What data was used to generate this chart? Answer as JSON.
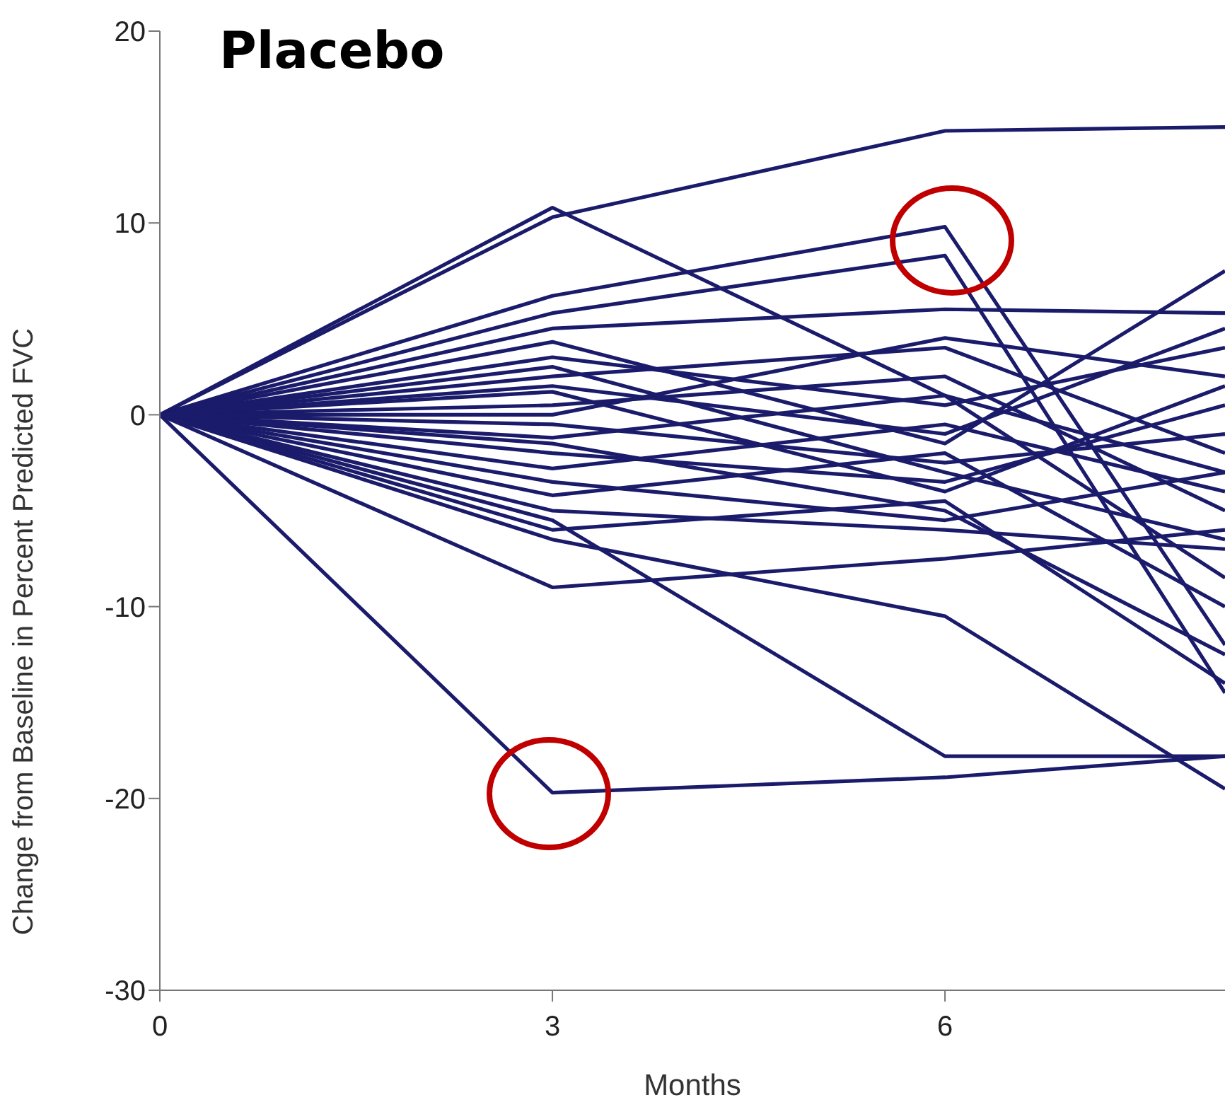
{
  "chart_data": {
    "type": "line",
    "title": "Placebo",
    "xlabel": "Months",
    "ylabel": "Change from Baseline in Percent Predicted FVC",
    "x": [
      0,
      3,
      6,
      8.14
    ],
    "xlim": [
      0,
      8.14
    ],
    "xticks": [
      0,
      3,
      6
    ],
    "ylim": [
      -30,
      20
    ],
    "yticks": [
      -30,
      -20,
      -10,
      0,
      10,
      20
    ],
    "grid": false,
    "marker": "none",
    "line_style": "solid",
    "series": [
      {
        "color": "#1b1b6b",
        "values": [
          0,
          10.3,
          14.8,
          15.0
        ]
      },
      {
        "color": "#1b1b6b",
        "values": [
          0,
          10.8,
          1.0,
          -3.0
        ]
      },
      {
        "color": "#1b1b6b",
        "values": [
          0,
          6.2,
          9.8,
          -12.0
        ]
      },
      {
        "color": "#1b1b6b",
        "values": [
          0,
          5.3,
          8.3,
          -14.5
        ]
      },
      {
        "color": "#1b1b6b",
        "values": [
          0,
          -19.7,
          -18.9,
          -17.8
        ]
      },
      {
        "color": "#1b1b6b",
        "values": [
          0,
          -9.0,
          -7.5,
          -6.0
        ]
      },
      {
        "color": "#1b1b6b",
        "values": [
          0,
          -5.5,
          -17.8,
          -17.8
        ]
      },
      {
        "color": "#1b1b6b",
        "values": [
          0,
          -6.5,
          -10.5,
          -19.5
        ]
      },
      {
        "color": "#1b1b6b",
        "values": [
          0,
          4.5,
          5.5,
          5.3
        ]
      },
      {
        "color": "#1b1b6b",
        "values": [
          0,
          3.8,
          -1.5,
          7.5
        ]
      },
      {
        "color": "#1b1b6b",
        "values": [
          0,
          3.0,
          0.5,
          3.5
        ]
      },
      {
        "color": "#1b1b6b",
        "values": [
          0,
          2.0,
          3.5,
          -2.0
        ]
      },
      {
        "color": "#1b1b6b",
        "values": [
          0,
          1.2,
          -4.0,
          1.5
        ]
      },
      {
        "color": "#1b1b6b",
        "values": [
          0,
          0.5,
          2.0,
          -5.0
        ]
      },
      {
        "color": "#1b1b6b",
        "values": [
          0,
          -0.5,
          -2.5,
          -1.0
        ]
      },
      {
        "color": "#1b1b6b",
        "values": [
          0,
          -1.2,
          1.0,
          -8.5
        ]
      },
      {
        "color": "#1b1b6b",
        "values": [
          0,
          -2.0,
          -3.5,
          0.5
        ]
      },
      {
        "color": "#1b1b6b",
        "values": [
          0,
          -2.8,
          -0.5,
          -4.0
        ]
      },
      {
        "color": "#1b1b6b",
        "values": [
          0,
          -3.5,
          -5.5,
          -3.0
        ]
      },
      {
        "color": "#1b1b6b",
        "values": [
          0,
          -4.2,
          -2.0,
          -10.0
        ]
      },
      {
        "color": "#1b1b6b",
        "values": [
          0,
          -5.0,
          -6.0,
          -7.0
        ]
      },
      {
        "color": "#1b1b6b",
        "values": [
          0,
          -6.0,
          -4.5,
          -14.0
        ]
      },
      {
        "color": "#1b1b6b",
        "values": [
          0,
          0,
          4.0,
          2.0
        ]
      },
      {
        "color": "#1b1b6b",
        "values": [
          0,
          -1.5,
          -5.0,
          -12.5
        ]
      },
      {
        "color": "#1b1b6b",
        "values": [
          0,
          2.5,
          -3.0,
          -6.5
        ]
      },
      {
        "color": "#1b1b6b",
        "values": [
          0,
          1.5,
          -1.0,
          4.5
        ]
      }
    ]
  }
}
